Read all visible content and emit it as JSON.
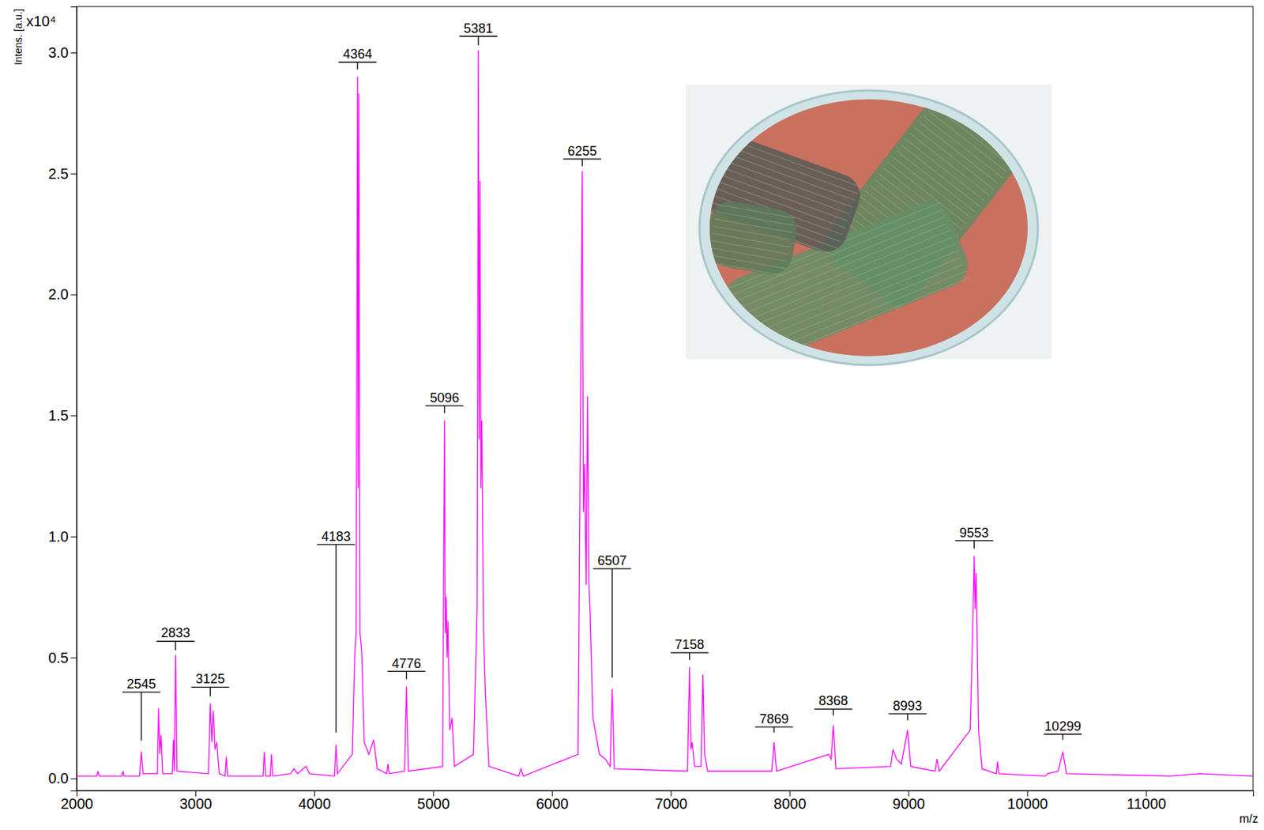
{
  "chart_data": {
    "type": "line",
    "y_label": "Intens. [a.u.]",
    "y_multiplier": "x10⁴",
    "x_label": "m/z",
    "color": "#ff00ff",
    "xlim": [
      2000,
      11900
    ],
    "ylim": [
      -0.05,
      3.19
    ],
    "xticks": [
      2000,
      3000,
      4000,
      5000,
      6000,
      7000,
      8000,
      9000,
      10000,
      11000
    ],
    "yticks": [
      {
        "value": 0,
        "label": "0.0"
      },
      {
        "value": 0.5,
        "label": "0.5"
      },
      {
        "value": 1,
        "label": "1.0"
      },
      {
        "value": 1.5,
        "label": "1.5"
      },
      {
        "value": 2,
        "label": "2.0"
      },
      {
        "value": 2.5,
        "label": "2.5"
      },
      {
        "value": 3,
        "label": "3.0"
      }
    ],
    "x": [
      2000,
      2170,
      2180,
      2190,
      2380,
      2390,
      2400,
      2530,
      2545,
      2560,
      2680,
      2690,
      2700,
      2710,
      2725,
      2805,
      2815,
      2822,
      2833,
      2845,
      3110,
      3125,
      3138,
      3150,
      3165,
      3180,
      3200,
      3250,
      3260,
      3272,
      3570,
      3580,
      3592,
      3630,
      3640,
      3652,
      3800,
      3830,
      3860,
      3930,
      3960,
      4170,
      4183,
      4195,
      4320,
      4340,
      4352,
      4364,
      4370,
      4375,
      4385,
      4400,
      4420,
      4460,
      4500,
      4530,
      4610,
      4620,
      4630,
      4760,
      4776,
      4792,
      5080,
      5096,
      5103,
      5110,
      5118,
      5125,
      5140,
      5160,
      5180,
      5340,
      5370,
      5381,
      5388,
      5395,
      5402,
      5410,
      5425,
      5440,
      5470,
      5720,
      5740,
      5760,
      6220,
      6240,
      6255,
      6265,
      6275,
      6288,
      6300,
      6312,
      6320,
      6345,
      6400,
      6450,
      6490,
      6507,
      6525,
      7140,
      7158,
      7170,
      7180,
      7200,
      7255,
      7270,
      7285,
      7310,
      7850,
      7869,
      7890,
      8330,
      8350,
      8368,
      8390,
      8850,
      8870,
      8900,
      8940,
      8993,
      9020,
      9225,
      9240,
      9260,
      9520,
      9540,
      9553,
      9560,
      9570,
      9590,
      9620,
      9740,
      9750,
      9762,
      10150,
      10170,
      10260,
      10299,
      10330,
      11200,
      11450,
      11900
    ],
    "values": [
      0.01,
      0.01,
      0.03,
      0.01,
      0.01,
      0.03,
      0.01,
      0.01,
      0.11,
      0.02,
      0.02,
      0.29,
      0.1,
      0.18,
      0.02,
      0.02,
      0.16,
      0.03,
      0.51,
      0.03,
      0.02,
      0.31,
      0.15,
      0.28,
      0.12,
      0.15,
      0.02,
      0.01,
      0.09,
      0.01,
      0.01,
      0.11,
      0.01,
      0.01,
      0.1,
      0.01,
      0.02,
      0.04,
      0.02,
      0.05,
      0.02,
      0.01,
      0.14,
      0.02,
      0.1,
      0.5,
      0.6,
      2.9,
      1.2,
      2.83,
      0.6,
      0.52,
      0.15,
      0.1,
      0.16,
      0.04,
      0.02,
      0.06,
      0.02,
      0.03,
      0.38,
      0.03,
      0.05,
      1.48,
      0.6,
      0.75,
      0.5,
      0.65,
      0.2,
      0.25,
      0.05,
      0.1,
      0.7,
      3.01,
      1.4,
      2.47,
      1.2,
      1.48,
      0.6,
      0.35,
      0.05,
      0.01,
      0.04,
      0.01,
      0.1,
      1.5,
      2.51,
      1.1,
      1.3,
      0.8,
      1.58,
      0.8,
      0.7,
      0.25,
      0.1,
      0.08,
      0.05,
      0.37,
      0.04,
      0.03,
      0.46,
      0.12,
      0.15,
      0.05,
      0.05,
      0.43,
      0.1,
      0.03,
      0.03,
      0.15,
      0.03,
      0.1,
      0.08,
      0.22,
      0.04,
      0.05,
      0.12,
      0.08,
      0.06,
      0.2,
      0.05,
      0.03,
      0.08,
      0.03,
      0.2,
      0.6,
      0.92,
      0.7,
      0.85,
      0.2,
      0.04,
      0.02,
      0.07,
      0.02,
      0.01,
      0.02,
      0.03,
      0.11,
      0.02,
      0.01,
      0.02,
      0.01
    ],
    "annotations": [
      {
        "text": "2545",
        "x": 2545,
        "y": 0.357,
        "tip": 0.157
      },
      {
        "text": "2833",
        "x": 2833,
        "y": 0.567,
        "tip": 0.53
      },
      {
        "text": "3125",
        "x": 3125,
        "y": 0.377,
        "tip": 0.34
      },
      {
        "text": "4183",
        "x": 4183,
        "y": 0.967,
        "tip": 0.19
      },
      {
        "text": "4364",
        "x": 4364,
        "y": 2.96,
        "tip": 2.93
      },
      {
        "text": "4776",
        "x": 4776,
        "y": 0.443,
        "tip": 0.41
      },
      {
        "text": "5096",
        "x": 5096,
        "y": 1.54,
        "tip": 1.51
      },
      {
        "text": "5381",
        "x": 5381,
        "y": 3.067,
        "tip": 3.03
      },
      {
        "text": "6255",
        "x": 6255,
        "y": 2.56,
        "tip": 2.53
      },
      {
        "text": "6507",
        "x": 6507,
        "y": 0.867,
        "tip": 0.417
      },
      {
        "text": "7158",
        "x": 7158,
        "y": 0.52,
        "tip": 0.49
      },
      {
        "text": "7869",
        "x": 7869,
        "y": 0.213,
        "tip": 0.19
      },
      {
        "text": "8368",
        "x": 8368,
        "y": 0.287,
        "tip": 0.26
      },
      {
        "text": "8993",
        "x": 8993,
        "y": 0.267,
        "tip": 0.24
      },
      {
        "text": "9553",
        "x": 9553,
        "y": 0.983,
        "tip": 0.95
      },
      {
        "text": "10299",
        "x": 10299,
        "y": 0.183,
        "tip": 0.16
      }
    ]
  }
}
